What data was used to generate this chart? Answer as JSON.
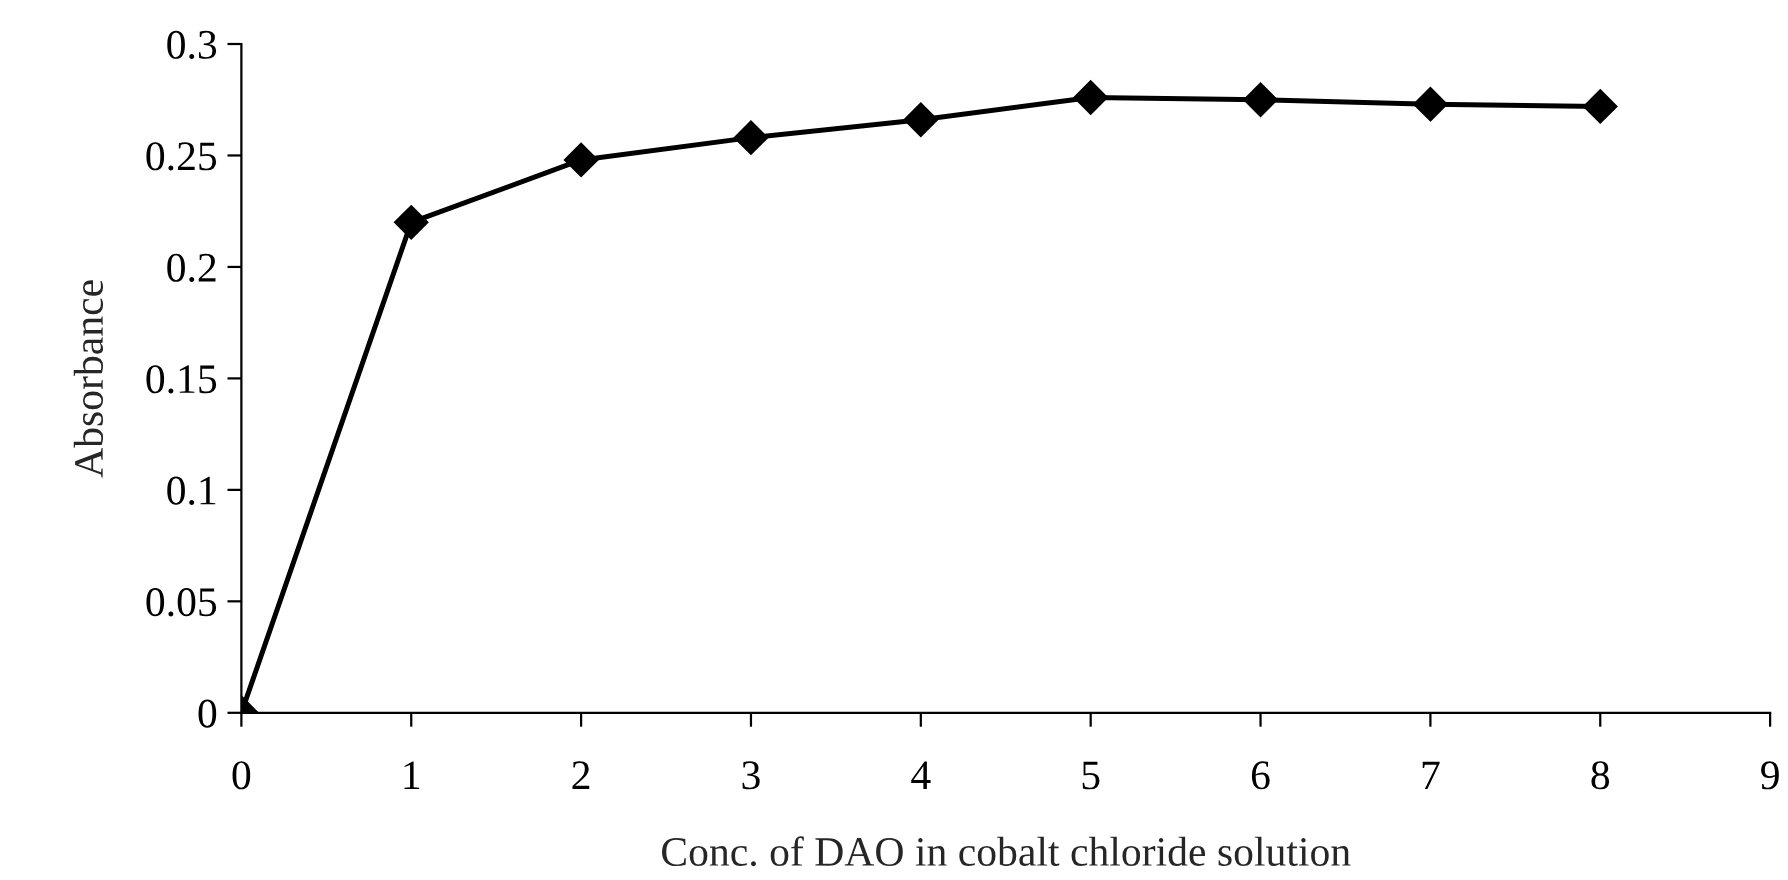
{
  "chart_data": {
    "type": "line",
    "xlabel": "Conc. of DAO in cobalt chloride solution",
    "ylabel": "Absorbance",
    "x": [
      0,
      1,
      2,
      3,
      4,
      5,
      6,
      7,
      8
    ],
    "series": [
      {
        "color": "#000000",
        "values": [
          0,
          0.22,
          0.248,
          0.258,
          0.266,
          0.276,
          0.275,
          0.273,
          0.272
        ]
      }
    ],
    "xlim": [
      0,
      9
    ],
    "xticks": [
      0,
      1,
      2,
      3,
      4,
      5,
      6,
      7,
      8,
      9
    ],
    "ylim": [
      0,
      0.3
    ],
    "yticks": [
      0,
      0.05,
      0.1,
      0.15,
      0.2,
      0.25,
      0.3
    ],
    "marker": "diamond",
    "line_style": "solid",
    "grid": false,
    "legend": false
  }
}
